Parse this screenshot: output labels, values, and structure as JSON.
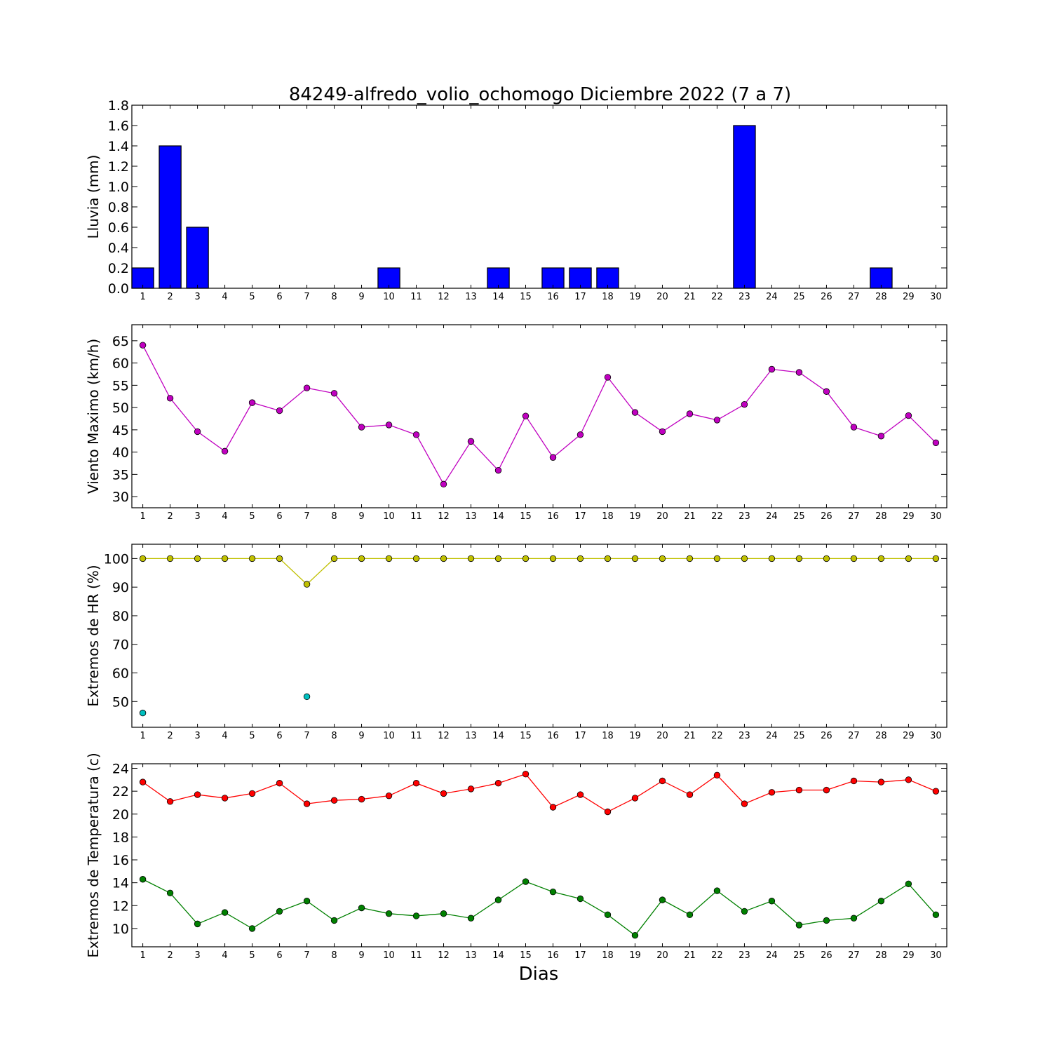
{
  "figure": {
    "title": "84249-alfredo_volio_ochomogo Diciembre 2022  (7 a 7)",
    "xlabel": "Dias"
  },
  "chart_data": [
    {
      "type": "bar",
      "ylabel": "Lluvia (mm)",
      "x": [
        1,
        2,
        3,
        4,
        5,
        6,
        7,
        8,
        9,
        10,
        11,
        12,
        13,
        14,
        15,
        16,
        17,
        18,
        19,
        20,
        21,
        22,
        23,
        24,
        25,
        26,
        27,
        28,
        29,
        30
      ],
      "xlim": [
        0.6,
        30.4
      ],
      "ylim": [
        0,
        1.8
      ],
      "yticks": [
        0.0,
        0.2,
        0.4,
        0.6,
        0.8,
        1.0,
        1.2,
        1.4,
        1.6,
        1.8
      ],
      "ytick_decimals": 1,
      "grid": false,
      "series": [
        {
          "values": [
            0.2,
            1.4,
            0.6,
            0,
            0,
            0,
            0,
            0,
            0,
            0.2,
            0,
            0,
            0,
            0.2,
            0,
            0.2,
            0.2,
            0.2,
            0,
            0,
            0,
            0,
            1.6,
            0,
            0,
            0,
            0,
            0.2,
            0,
            0
          ],
          "color": "#0000ff"
        }
      ]
    },
    {
      "type": "line",
      "ylabel": "Viento Maximo (km/h)",
      "x": [
        1,
        2,
        3,
        4,
        5,
        6,
        7,
        8,
        9,
        10,
        11,
        12,
        13,
        14,
        15,
        16,
        17,
        18,
        19,
        20,
        21,
        22,
        23,
        24,
        25,
        26,
        27,
        28,
        29,
        30
      ],
      "xlim": [
        0.6,
        30.4
      ],
      "ylim": [
        27.5,
        68.6
      ],
      "yticks": [
        30,
        35,
        40,
        45,
        50,
        55,
        60,
        65
      ],
      "ytick_decimals": 0,
      "grid": false,
      "series": [
        {
          "values": [
            64.0,
            52.1,
            44.6,
            40.2,
            51.1,
            49.3,
            54.4,
            53.2,
            45.6,
            46.1,
            43.9,
            32.8,
            42.4,
            35.9,
            48.1,
            38.8,
            43.9,
            56.8,
            48.9,
            44.6,
            48.6,
            47.2,
            50.7,
            58.6,
            57.9,
            53.6,
            45.6,
            43.6,
            48.2,
            42.1
          ],
          "color": "#c000c0"
        }
      ]
    },
    {
      "type": "line",
      "ylabel": "Extremos de HR (%)",
      "x": [
        1,
        2,
        3,
        4,
        5,
        6,
        7,
        8,
        9,
        10,
        11,
        12,
        13,
        14,
        15,
        16,
        17,
        18,
        19,
        20,
        21,
        22,
        23,
        24,
        25,
        26,
        27,
        28,
        29,
        30
      ],
      "xlim": [
        0.6,
        30.4
      ],
      "ylim": [
        41,
        105
      ],
      "yticks": [
        50,
        60,
        70,
        80,
        90,
        100
      ],
      "ytick_decimals": 0,
      "grid": false,
      "series": [
        {
          "values": [
            100,
            100,
            100,
            100,
            100,
            100,
            91,
            100,
            100,
            100,
            100,
            100,
            100,
            100,
            100,
            100,
            100,
            100,
            100,
            100,
            100,
            100,
            100,
            100,
            100,
            100,
            100,
            100,
            100,
            100
          ],
          "color": "#c0c000"
        },
        {
          "values": [
            46,
            null,
            null,
            null,
            null,
            null,
            51.7,
            null,
            null,
            null,
            null,
            null,
            null,
            null,
            null,
            null,
            null,
            null,
            null,
            null,
            null,
            null,
            null,
            null,
            null,
            null,
            null,
            null,
            null,
            null
          ],
          "color": "#00c0c0"
        }
      ]
    },
    {
      "type": "line",
      "ylabel": "Extremos de Temperatura (c)",
      "x": [
        1,
        2,
        3,
        4,
        5,
        6,
        7,
        8,
        9,
        10,
        11,
        12,
        13,
        14,
        15,
        16,
        17,
        18,
        19,
        20,
        21,
        22,
        23,
        24,
        25,
        26,
        27,
        28,
        29,
        30
      ],
      "xlim": [
        0.6,
        30.4
      ],
      "ylim": [
        8.4,
        24.4
      ],
      "yticks": [
        10,
        12,
        14,
        16,
        18,
        20,
        22,
        24
      ],
      "ytick_decimals": 0,
      "grid": false,
      "series": [
        {
          "values": [
            22.8,
            21.1,
            21.7,
            21.4,
            21.8,
            22.7,
            20.9,
            21.2,
            21.3,
            21.6,
            22.7,
            21.8,
            22.2,
            22.7,
            23.5,
            20.6,
            21.7,
            20.2,
            21.4,
            22.9,
            21.7,
            23.4,
            20.9,
            21.9,
            22.1,
            22.1,
            22.9,
            22.8,
            23.0,
            22.0
          ],
          "color": "#ff0000"
        },
        {
          "values": [
            14.3,
            13.1,
            10.4,
            11.4,
            10.0,
            11.5,
            12.4,
            10.7,
            11.8,
            11.3,
            11.1,
            11.3,
            10.9,
            12.5,
            14.1,
            13.2,
            12.6,
            11.2,
            9.4,
            12.5,
            11.2,
            13.3,
            11.5,
            12.4,
            10.3,
            10.7,
            10.9,
            12.4,
            13.9,
            11.2
          ],
          "color": "#008000"
        }
      ]
    }
  ]
}
